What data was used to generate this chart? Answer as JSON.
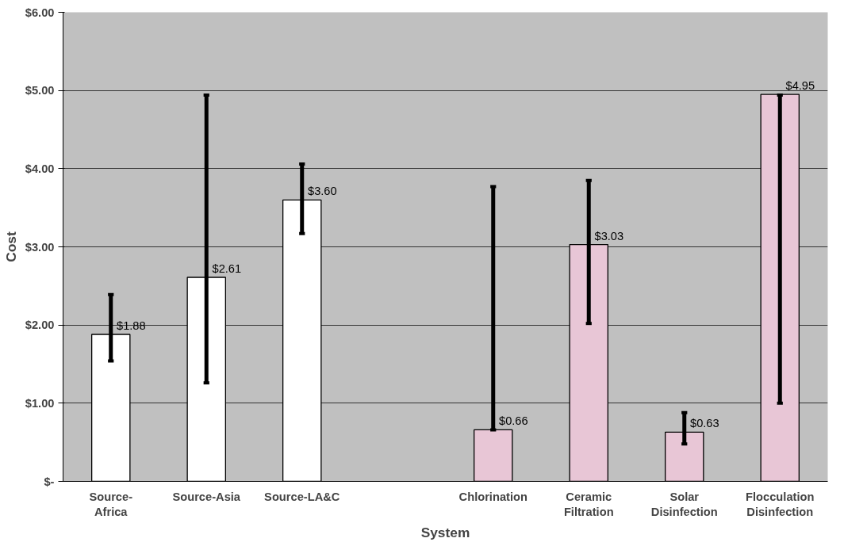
{
  "chart_data": {
    "type": "bar",
    "xlabel": "System",
    "ylabel": "Cost",
    "categories": [
      "Source-Africa",
      "Source-Asia",
      "Source-LA&C",
      null,
      "Chlorination",
      "Ceramic Filtration",
      "Solar Disinfection",
      "Flocculation Disinfection"
    ],
    "values": [
      1.88,
      2.61,
      3.6,
      null,
      0.66,
      3.03,
      0.63,
      4.95
    ],
    "value_labels": [
      "$1.88",
      "$2.61",
      "$3.60",
      null,
      "$0.66",
      "$3.03",
      "$0.63",
      "$4.95"
    ],
    "colors": [
      "#ffffff",
      "#ffffff",
      "#ffffff",
      "#ffffff",
      "#e8c6d6",
      "#e8c6d6",
      "#e8c6d6",
      "#e8c6d6"
    ],
    "errors": [
      [
        1.54,
        2.39
      ],
      [
        1.26,
        4.94
      ],
      [
        3.17,
        4.06
      ],
      null,
      [
        0.66,
        3.77
      ],
      [
        2.02,
        3.85
      ],
      [
        0.48,
        0.88
      ],
      [
        1.0,
        4.94
      ]
    ],
    "ylim": [
      0,
      6
    ],
    "yticks": [
      {
        "value": 0,
        "label": "$-"
      },
      {
        "value": 1,
        "label": "$1.00"
      },
      {
        "value": 2,
        "label": "$2.00"
      },
      {
        "value": 3,
        "label": "$3.00"
      },
      {
        "value": 4,
        "label": "$4.00"
      },
      {
        "value": 5,
        "label": "$5.00"
      },
      {
        "value": 6,
        "label": "$6.00"
      }
    ],
    "grid": "y"
  }
}
